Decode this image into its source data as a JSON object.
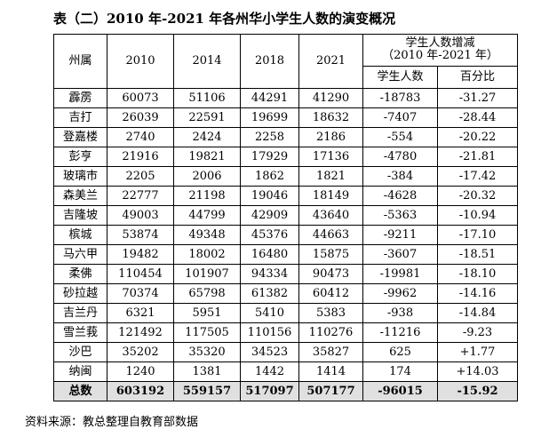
{
  "title": "表（二）2010 年-2021 年各州华小学生人数的演变概况",
  "table": {
    "header": {
      "state": "州属",
      "years": [
        "2010",
        "2014",
        "2018",
        "2021"
      ],
      "change_group_line1": "学生人数增减",
      "change_group_line2": "（2010 年-2021 年）",
      "change_count": "学生人数",
      "change_percent": "百分比"
    },
    "rows": [
      {
        "state": "霹雳",
        "y2010": "60073",
        "y2014": "51106",
        "y2018": "44291",
        "y2021": "41290",
        "change": "-18783",
        "percent": "-31.27"
      },
      {
        "state": "吉打",
        "y2010": "26039",
        "y2014": "22591",
        "y2018": "19699",
        "y2021": "18632",
        "change": "-7407",
        "percent": "-28.44"
      },
      {
        "state": "登嘉楼",
        "y2010": "2740",
        "y2014": "2424",
        "y2018": "2258",
        "y2021": "2186",
        "change": "-554",
        "percent": "-20.22"
      },
      {
        "state": "彭亨",
        "y2010": "21916",
        "y2014": "19821",
        "y2018": "17929",
        "y2021": "17136",
        "change": "-4780",
        "percent": "-21.81"
      },
      {
        "state": "玻璃市",
        "y2010": "2205",
        "y2014": "2006",
        "y2018": "1862",
        "y2021": "1821",
        "change": "-384",
        "percent": "-17.42"
      },
      {
        "state": "森美兰",
        "y2010": "22777",
        "y2014": "21198",
        "y2018": "19046",
        "y2021": "18149",
        "change": "-4628",
        "percent": "-20.32"
      },
      {
        "state": "吉隆坡",
        "y2010": "49003",
        "y2014": "44799",
        "y2018": "42909",
        "y2021": "43640",
        "change": "-5363",
        "percent": "-10.94"
      },
      {
        "state": "槟城",
        "y2010": "53874",
        "y2014": "49348",
        "y2018": "45376",
        "y2021": "44663",
        "change": "-9211",
        "percent": "-17.10"
      },
      {
        "state": "马六甲",
        "y2010": "19482",
        "y2014": "18002",
        "y2018": "16480",
        "y2021": "15875",
        "change": "-3607",
        "percent": "-18.51"
      },
      {
        "state": "柔佛",
        "y2010": "110454",
        "y2014": "101907",
        "y2018": "94334",
        "y2021": "90473",
        "change": "-19981",
        "percent": "-18.10"
      },
      {
        "state": "砂拉越",
        "y2010": "70374",
        "y2014": "65798",
        "y2018": "61382",
        "y2021": "60412",
        "change": "-9962",
        "percent": "-14.16"
      },
      {
        "state": "吉兰丹",
        "y2010": "6321",
        "y2014": "5951",
        "y2018": "5410",
        "y2021": "5383",
        "change": "-938",
        "percent": "-14.84"
      },
      {
        "state": "雪兰莪",
        "y2010": "121492",
        "y2014": "117505",
        "y2018": "110156",
        "y2021": "110276",
        "change": "-11216",
        "percent": "-9.23"
      },
      {
        "state": "沙巴",
        "y2010": "35202",
        "y2014": "35320",
        "y2018": "34523",
        "y2021": "35827",
        "change": "625",
        "percent": "+1.77"
      },
      {
        "state": "纳闽",
        "y2010": "1240",
        "y2014": "1381",
        "y2018": "1442",
        "y2021": "1414",
        "change": "174",
        "percent": "+14.03"
      }
    ],
    "total": {
      "state": "总数",
      "y2010": "603192",
      "y2014": "559157",
      "y2018": "517097",
      "y2021": "507177",
      "change": "-96015",
      "percent": "-15.92"
    }
  },
  "source": "资料来源：教总整理自教育部数据"
}
